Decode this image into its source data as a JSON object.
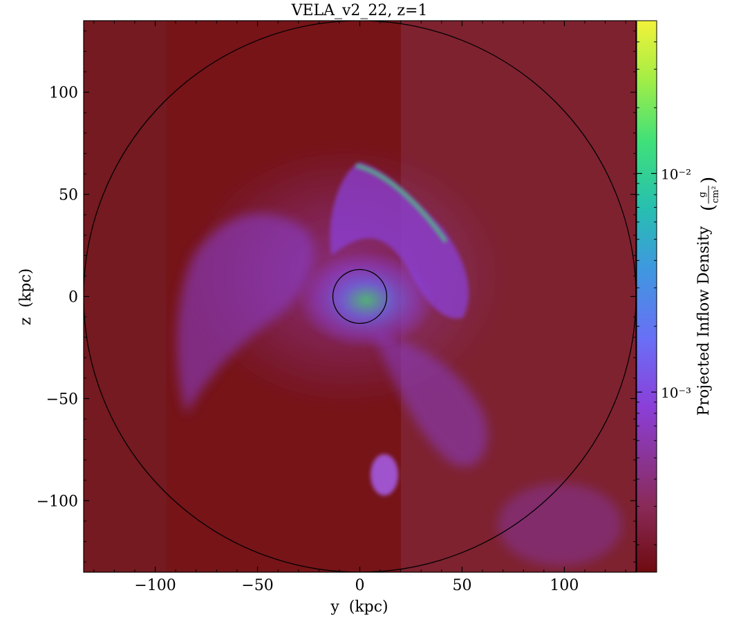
{
  "chart_data": {
    "type": "heatmap",
    "title": "VELA_v2_22, z=1",
    "xlabel": "y  (kpc)",
    "ylabel": "z  (kpc)",
    "xlim": [
      -135,
      135
    ],
    "ylim": [
      -135,
      135
    ],
    "xticks": [
      -100,
      -50,
      0,
      50,
      100
    ],
    "xtick_labels": [
      "−100",
      "−50",
      "0",
      "50",
      "100"
    ],
    "yticks": [
      -100,
      -50,
      0,
      50,
      100
    ],
    "ytick_labels": [
      "−100",
      "−50",
      "0",
      "50",
      "100"
    ],
    "grid": false,
    "colorbar": {
      "label": "Projected Inflow Density",
      "unit_numerator": "g",
      "unit_denominator": "cm²",
      "scale": "log",
      "range": [
        0.00015,
        0.05
      ],
      "ticks": [
        0.001,
        0.01
      ],
      "tick_labels": [
        "10⁻³",
        "10⁻²"
      ],
      "colormap_stops": [
        "#6e0b10",
        "#8a2a58",
        "#8b3fd8",
        "#6a6ef6",
        "#3f98df",
        "#27bfb0",
        "#3fe07a",
        "#a8ee44",
        "#f2f23a"
      ]
    },
    "circles": [
      {
        "name": "outer-circle",
        "center": [
          0,
          0
        ],
        "radius": 135
      },
      {
        "name": "inner-circle",
        "center": [
          0,
          0
        ],
        "radius": 13.5
      }
    ]
  }
}
